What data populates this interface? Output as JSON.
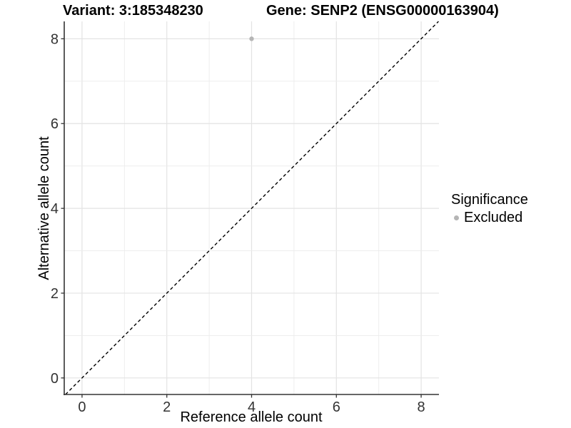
{
  "chart_data": {
    "type": "scatter",
    "titles": {
      "left": "Variant: 3:185348230",
      "right": "Gene: SENP2 (ENSG00000163904)"
    },
    "xlabel": "Reference allele count",
    "ylabel": "Alternative allele count",
    "x_ticks": [
      0,
      2,
      4,
      6,
      8
    ],
    "y_ticks": [
      0,
      2,
      4,
      6,
      8
    ],
    "xlim": [
      -0.42,
      8.42
    ],
    "ylim": [
      -0.39,
      8.41
    ],
    "grid_interval": 1,
    "grid": true,
    "series": [
      {
        "name": "Excluded",
        "color": "#b5b5b5",
        "points": [
          {
            "x": 4,
            "y": 8
          }
        ]
      }
    ],
    "reference_line": {
      "kind": "identity",
      "slope": 1,
      "intercept": 0,
      "style": "dashed",
      "color": "#000000"
    },
    "legend": {
      "title": "Significance",
      "position": "right",
      "items": [
        {
          "label": "Excluded",
          "color": "#b5b5b5"
        }
      ]
    },
    "style": {
      "background": "#ffffff",
      "grid_color_major": "#e3e3e3",
      "grid_color_minor": "#ececec",
      "axis_color": "#333333",
      "tick_label_color": "#333333",
      "title_color": "#000000",
      "point_radius": 3.2
    }
  }
}
